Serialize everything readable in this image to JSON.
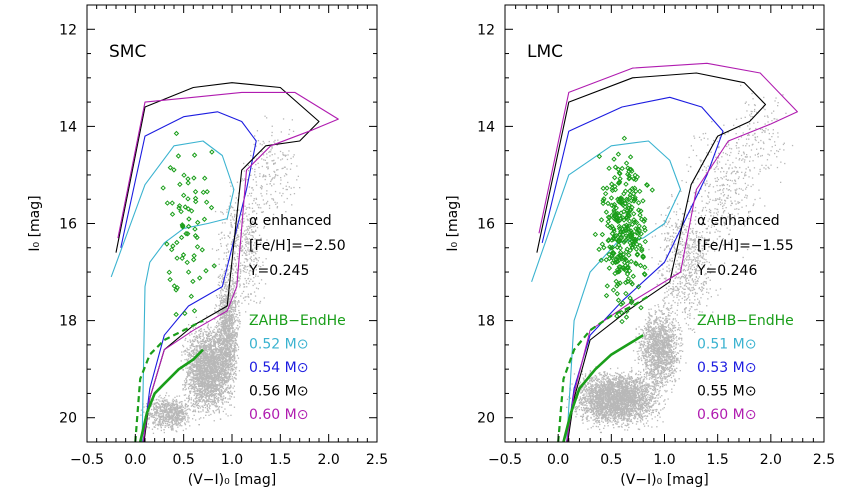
{
  "chart_data": [
    {
      "type": "scatter",
      "panel_label": "SMC",
      "xlabel": "(V−I)₀ [mag]",
      "ylabel": "I₀ [mag]",
      "xlim": [
        -0.5,
        2.5
      ],
      "ylim": [
        20.5,
        11.5
      ],
      "y_inverted": true,
      "x_ticks": [
        "−0.5",
        "0.0",
        "0.5",
        "1.0",
        "1.5",
        "2.0",
        "2.5"
      ],
      "y_ticks": [
        "12",
        "14",
        "16",
        "18",
        "20"
      ],
      "annotations": [
        "α enhanced",
        "[Fe/H]=−2.50",
        "Y=0.245"
      ],
      "legend": [
        {
          "label": "ZAHB−EndHe",
          "color": "#1a9e1a"
        },
        {
          "label": "0.52 M⊙",
          "color": "#3bb3d0"
        },
        {
          "label": "0.54 M⊙",
          "color": "#1c1ce0"
        },
        {
          "label": "0.56 M⊙",
          "color": "#000000"
        },
        {
          "label": "0.60 M⊙",
          "color": "#b01cb0"
        }
      ],
      "series": [
        {
          "name": "0.52 M⊙",
          "color": "#3bb3d0",
          "x": [
            -0.25,
            0.1,
            0.4,
            0.7,
            0.9,
            1.02,
            0.95,
            0.75,
            0.5,
            0.3,
            0.15,
            0.1,
            0.07
          ],
          "y": [
            17.1,
            15.2,
            14.4,
            14.3,
            14.6,
            15.3,
            15.9,
            16.0,
            16.1,
            16.4,
            16.8,
            17.3,
            20.5
          ]
        },
        {
          "name": "0.54 M⊙",
          "color": "#1c1ce0",
          "x": [
            -0.15,
            0.1,
            0.5,
            0.85,
            1.1,
            1.25,
            1.15,
            1.0,
            0.9,
            0.55,
            0.3,
            0.15,
            0.08
          ],
          "y": [
            16.5,
            14.2,
            13.8,
            13.7,
            13.9,
            14.3,
            15.3,
            16.5,
            17.3,
            17.7,
            18.3,
            19.4,
            20.5
          ]
        },
        {
          "name": "0.56 M⊙",
          "color": "#000000",
          "x": [
            -0.2,
            0.1,
            0.6,
            1.0,
            1.5,
            1.9,
            1.7,
            1.35,
            1.1,
            0.95,
            0.6,
            0.3,
            0.15,
            0.09
          ],
          "y": [
            16.6,
            13.6,
            13.2,
            13.1,
            13.2,
            13.9,
            14.3,
            14.4,
            14.9,
            17.7,
            18.1,
            18.6,
            19.6,
            20.5
          ]
        },
        {
          "name": "0.60 M⊙",
          "color": "#b01cb0",
          "x": [
            -0.18,
            0.1,
            0.6,
            1.1,
            1.65,
            2.1,
            1.8,
            1.4,
            1.15,
            1.05,
            0.95,
            0.6,
            0.3,
            0.15,
            0.08
          ],
          "y": [
            16.3,
            13.5,
            13.4,
            13.3,
            13.3,
            13.85,
            14.1,
            14.4,
            14.9,
            17.3,
            17.8,
            18.2,
            18.6,
            19.6,
            20.5
          ]
        },
        {
          "name": "ZAHB−EndHe (ZAHB)",
          "color": "#1a9e1a",
          "x": [
            0.05,
            0.12,
            0.2,
            0.3,
            0.45,
            0.6,
            0.7
          ],
          "y": [
            20.5,
            19.9,
            19.5,
            19.3,
            19.0,
            18.8,
            18.6
          ]
        },
        {
          "name": "ZAHB−EndHe (EndHe)",
          "color": "#1a9e1a",
          "x": [
            0.0,
            0.05,
            0.15,
            0.3,
            0.5,
            0.7
          ],
          "y": [
            20.5,
            19.2,
            18.7,
            18.4,
            18.2,
            18.0
          ]
        }
      ]
    },
    {
      "type": "scatter",
      "panel_label": "LMC",
      "xlabel": "(V−I)₀ [mag]",
      "ylabel": "I₀ [mag]",
      "xlim": [
        -0.5,
        2.5
      ],
      "ylim": [
        20.5,
        11.5
      ],
      "y_inverted": true,
      "x_ticks": [
        "−0.5",
        "0.0",
        "0.5",
        "1.0",
        "1.5",
        "2.0",
        "2.5"
      ],
      "y_ticks": [
        "12",
        "14",
        "16",
        "18",
        "20"
      ],
      "annotations": [
        "α enhanced",
        "[Fe/H]=−1.55",
        "Y=0.246"
      ],
      "legend": [
        {
          "label": "ZAHB−EndHe",
          "color": "#1a9e1a"
        },
        {
          "label": "0.51 M⊙",
          "color": "#3bb3d0"
        },
        {
          "label": "0.53 M⊙",
          "color": "#1c1ce0"
        },
        {
          "label": "0.55 M⊙",
          "color": "#000000"
        },
        {
          "label": "0.60 M⊙",
          "color": "#b01cb0"
        }
      ],
      "series": [
        {
          "name": "0.51 M⊙",
          "color": "#3bb3d0",
          "x": [
            -0.25,
            0.1,
            0.5,
            0.85,
            1.05,
            1.15,
            1.0,
            0.8,
            0.55,
            0.3,
            0.15,
            0.08
          ],
          "y": [
            17.2,
            15.0,
            14.4,
            14.3,
            14.7,
            15.3,
            16.0,
            16.3,
            16.4,
            17.0,
            18.0,
            20.5
          ]
        },
        {
          "name": "0.53 M⊙",
          "color": "#1c1ce0",
          "x": [
            -0.15,
            0.1,
            0.6,
            1.05,
            1.35,
            1.55,
            1.4,
            1.2,
            1.0,
            0.6,
            0.3,
            0.15,
            0.08
          ],
          "y": [
            16.4,
            14.1,
            13.6,
            13.4,
            13.6,
            14.1,
            15.0,
            15.9,
            16.8,
            17.6,
            18.3,
            19.4,
            20.5
          ]
        },
        {
          "name": "0.55 M⊙",
          "color": "#000000",
          "x": [
            -0.2,
            0.1,
            0.7,
            1.3,
            1.75,
            1.95,
            1.8,
            1.5,
            1.25,
            1.05,
            0.65,
            0.3,
            0.15,
            0.09
          ],
          "y": [
            16.6,
            13.5,
            13.0,
            12.9,
            13.1,
            13.55,
            13.9,
            14.2,
            15.2,
            17.2,
            17.8,
            18.4,
            19.6,
            20.5
          ]
        },
        {
          "name": "0.60 M⊙",
          "color": "#b01cb0",
          "x": [
            -0.18,
            0.1,
            0.7,
            1.4,
            1.9,
            2.25,
            2.0,
            1.6,
            1.3,
            1.15,
            0.7,
            0.3,
            0.15,
            0.08
          ],
          "y": [
            16.2,
            13.3,
            12.8,
            12.7,
            12.9,
            13.7,
            13.95,
            14.3,
            15.3,
            17.0,
            17.6,
            18.2,
            19.5,
            20.5
          ]
        },
        {
          "name": "ZAHB−EndHe (ZAHB)",
          "color": "#1a9e1a",
          "x": [
            0.05,
            0.12,
            0.2,
            0.35,
            0.5,
            0.65,
            0.8
          ],
          "y": [
            20.5,
            19.9,
            19.4,
            19.0,
            18.7,
            18.5,
            18.3
          ]
        },
        {
          "name": "ZAHB−EndHe (EndHe)",
          "color": "#1a9e1a",
          "x": [
            0.0,
            0.05,
            0.15,
            0.3,
            0.5,
            0.7,
            0.85
          ],
          "y": [
            20.5,
            19.2,
            18.6,
            18.2,
            17.9,
            17.7,
            17.5
          ]
        }
      ]
    }
  ],
  "symbols": {
    "sun": "⊙"
  }
}
